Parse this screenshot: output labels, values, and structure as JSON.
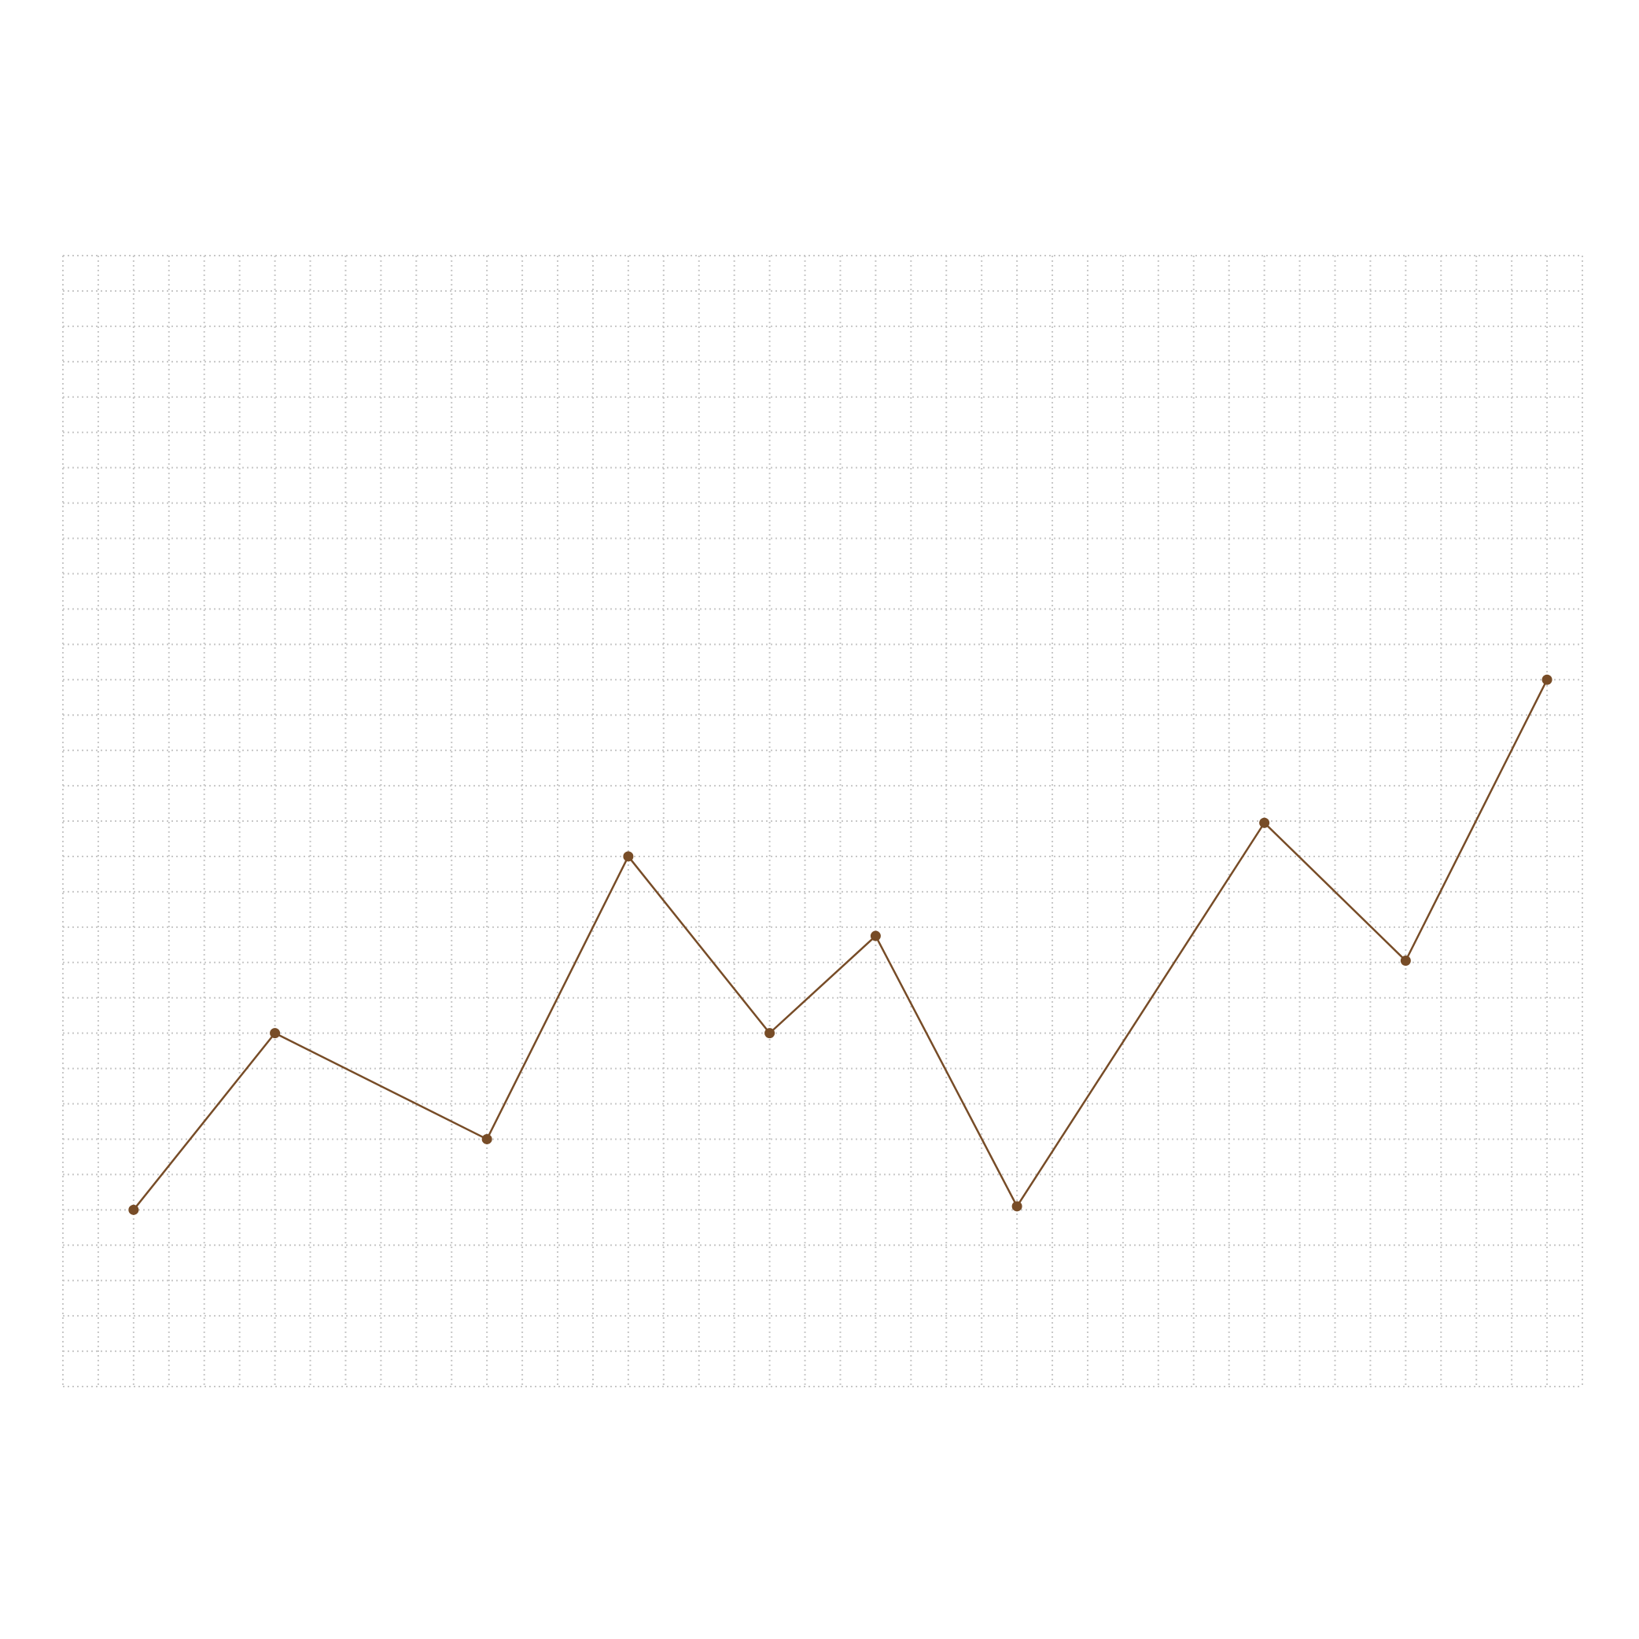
{
  "chart_data": {
    "type": "line",
    "title": "",
    "xlabel": "",
    "ylabel": "",
    "grid": true,
    "legend": "none",
    "xlim": [
      0,
      43
    ],
    "ylim": [
      0,
      32
    ],
    "x_grid_step": 1,
    "y_grid_step": 1,
    "line_color": "#774c27",
    "marker_color": "#774c27",
    "series": [
      {
        "x": [
          2,
          6,
          12,
          16,
          20,
          23,
          27,
          34,
          38,
          42
        ],
        "y": [
          5,
          10,
          7,
          15,
          10,
          12.75,
          5.1,
          15.95,
          12.05,
          20
        ]
      }
    ]
  }
}
